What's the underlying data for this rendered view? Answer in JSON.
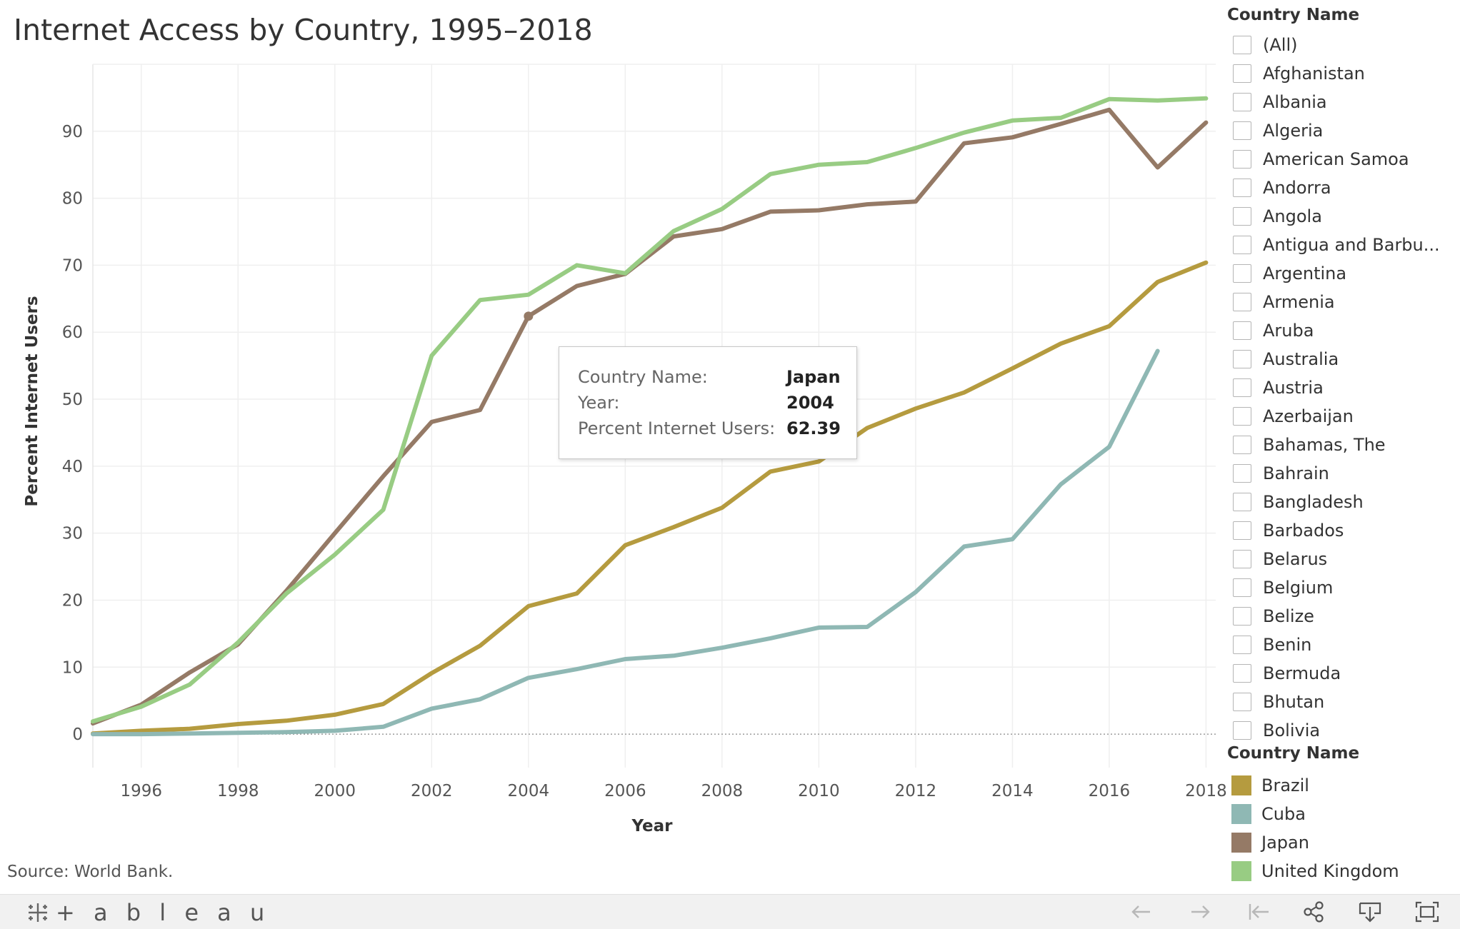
{
  "title": "Internet Access by Country, 1995–2018",
  "source": "Source: World Bank.",
  "chart_data": {
    "type": "line",
    "title": "Internet Access by Country, 1995–2018",
    "xlabel": "Year",
    "ylabel": "Percent Internet Users",
    "xlim": [
      1995,
      2018.2
    ],
    "ylim": [
      -5,
      100
    ],
    "x_ticks": [
      1996,
      1998,
      2000,
      2002,
      2004,
      2006,
      2008,
      2010,
      2012,
      2014,
      2016,
      2018
    ],
    "y_ticks": [
      0,
      10,
      20,
      30,
      40,
      50,
      60,
      70,
      80,
      90
    ],
    "grid": true,
    "legend_placement": "right",
    "series": [
      {
        "name": "Brazil",
        "color": "#b59b3f",
        "x": [
          1995,
          1996,
          1997,
          1998,
          1999,
          2000,
          2001,
          2002,
          2003,
          2004,
          2005,
          2006,
          2007,
          2008,
          2009,
          2010,
          2011,
          2012,
          2013,
          2014,
          2015,
          2016,
          2017,
          2018
        ],
        "values": [
          0.1,
          0.5,
          0.8,
          1.5,
          2.0,
          2.9,
          4.5,
          9.1,
          13.2,
          19.1,
          21.0,
          28.2,
          30.9,
          33.8,
          39.2,
          40.7,
          45.7,
          48.6,
          51.0,
          54.6,
          58.3,
          60.9,
          67.5,
          70.4
        ]
      },
      {
        "name": "Cuba",
        "color": "#8fb8b4",
        "x": [
          1995,
          1996,
          1997,
          1998,
          1999,
          2000,
          2001,
          2002,
          2003,
          2004,
          2005,
          2006,
          2007,
          2008,
          2009,
          2010,
          2011,
          2012,
          2013,
          2014,
          2015,
          2016,
          2017
        ],
        "values": [
          0.0,
          0.0,
          0.1,
          0.2,
          0.3,
          0.5,
          1.1,
          3.8,
          5.2,
          8.4,
          9.7,
          11.2,
          11.7,
          12.9,
          14.3,
          15.9,
          16.0,
          21.2,
          28.0,
          29.1,
          37.3,
          42.9,
          57.2
        ]
      },
      {
        "name": "Japan",
        "color": "#957a66",
        "x": [
          1995,
          1996,
          1997,
          1998,
          1999,
          2000,
          2001,
          2002,
          2003,
          2004,
          2005,
          2006,
          2007,
          2008,
          2009,
          2010,
          2011,
          2012,
          2013,
          2014,
          2015,
          2016,
          2017,
          2018
        ],
        "values": [
          1.6,
          4.4,
          9.2,
          13.4,
          21.4,
          30.0,
          38.5,
          46.6,
          48.4,
          62.39,
          66.9,
          68.7,
          74.3,
          75.4,
          78.0,
          78.2,
          79.1,
          79.5,
          88.2,
          89.1,
          91.1,
          93.2,
          84.6,
          91.3
        ]
      },
      {
        "name": "United Kingdom",
        "color": "#98cc83",
        "x": [
          1995,
          1996,
          1997,
          1998,
          1999,
          2000,
          2001,
          2002,
          2003,
          2004,
          2005,
          2006,
          2007,
          2008,
          2009,
          2010,
          2011,
          2012,
          2013,
          2014,
          2015,
          2016,
          2017,
          2018
        ],
        "values": [
          1.9,
          4.1,
          7.4,
          13.7,
          21.0,
          26.8,
          33.5,
          56.5,
          64.8,
          65.6,
          70.0,
          68.8,
          75.1,
          78.4,
          83.6,
          85.0,
          85.4,
          87.5,
          89.8,
          91.6,
          92.0,
          94.8,
          94.6,
          94.9
        ]
      }
    ],
    "highlight": {
      "series": "Japan",
      "x": 2004,
      "y": 62.39
    }
  },
  "tooltip": {
    "rows": [
      {
        "key": "Country Name:",
        "value": "Japan"
      },
      {
        "key": "Year:",
        "value": "2004"
      },
      {
        "key": "Percent Internet Users:",
        "value": "62.39"
      }
    ]
  },
  "filter": {
    "title": "Country Name",
    "items": [
      "(All)",
      "Afghanistan",
      "Albania",
      "Algeria",
      "American Samoa",
      "Andorra",
      "Angola",
      "Antigua and Barbu...",
      "Argentina",
      "Armenia",
      "Aruba",
      "Australia",
      "Austria",
      "Azerbaijan",
      "Bahamas, The",
      "Bahrain",
      "Bangladesh",
      "Barbados",
      "Belarus",
      "Belgium",
      "Belize",
      "Benin",
      "Bermuda",
      "Bhutan",
      "Bolivia"
    ]
  },
  "legend": {
    "title": "Country Name",
    "items": [
      {
        "label": "Brazil",
        "color": "#b59b3f"
      },
      {
        "label": "Cuba",
        "color": "#8fb8b4"
      },
      {
        "label": "Japan",
        "color": "#957a66"
      },
      {
        "label": "United Kingdom",
        "color": "#98cc83"
      }
    ]
  },
  "footer": {
    "logo_text": "+ a b l e a u",
    "icons": [
      "undo-icon",
      "redo-icon",
      "revert-icon",
      "share-icon",
      "download-icon",
      "fullscreen-icon"
    ]
  }
}
